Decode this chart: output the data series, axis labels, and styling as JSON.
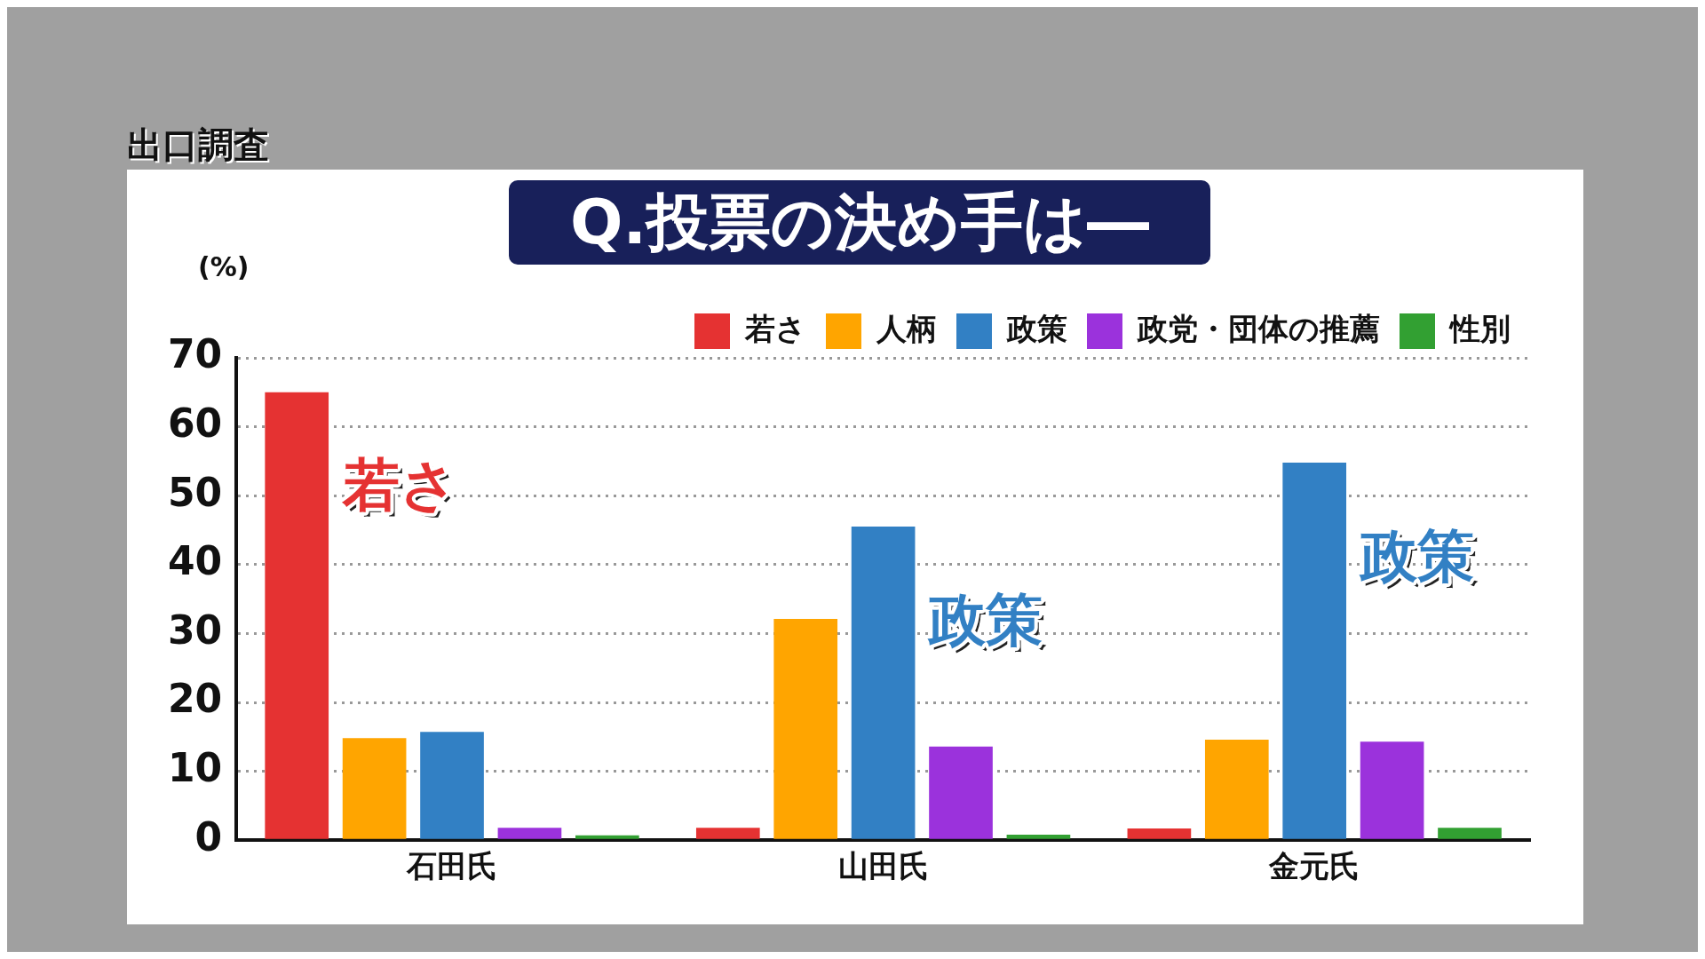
{
  "chart_data": {
    "type": "bar",
    "title": "Q.投票の決め手は―",
    "subtitle": "出口調査",
    "ylabel": "(%)",
    "categories": [
      "石田氏",
      "山田氏",
      "金元氏"
    ],
    "series": [
      {
        "name": "若さ",
        "color": "#e53232",
        "values": [
          65.0,
          1.8,
          1.7
        ]
      },
      {
        "name": "人柄",
        "color": "#ffa500",
        "values": [
          14.8,
          32.1,
          14.6
        ]
      },
      {
        "name": "政策",
        "color": "#3280c4",
        "values": [
          15.7,
          45.5,
          54.8
        ]
      },
      {
        "name": "政党・団体の推薦",
        "color": "#9b32dc",
        "values": [
          1.8,
          13.6,
          14.3
        ]
      },
      {
        "name": "性別",
        "color": "#32a032",
        "values": [
          0.7,
          0.8,
          1.8
        ]
      }
    ],
    "ylim": [
      0,
      70
    ],
    "yticks": [
      0,
      10,
      20,
      30,
      40,
      50,
      60,
      70
    ],
    "grid": "y",
    "legend": "top right",
    "annotations": [
      "若さ",
      "政策",
      "政策"
    ]
  }
}
